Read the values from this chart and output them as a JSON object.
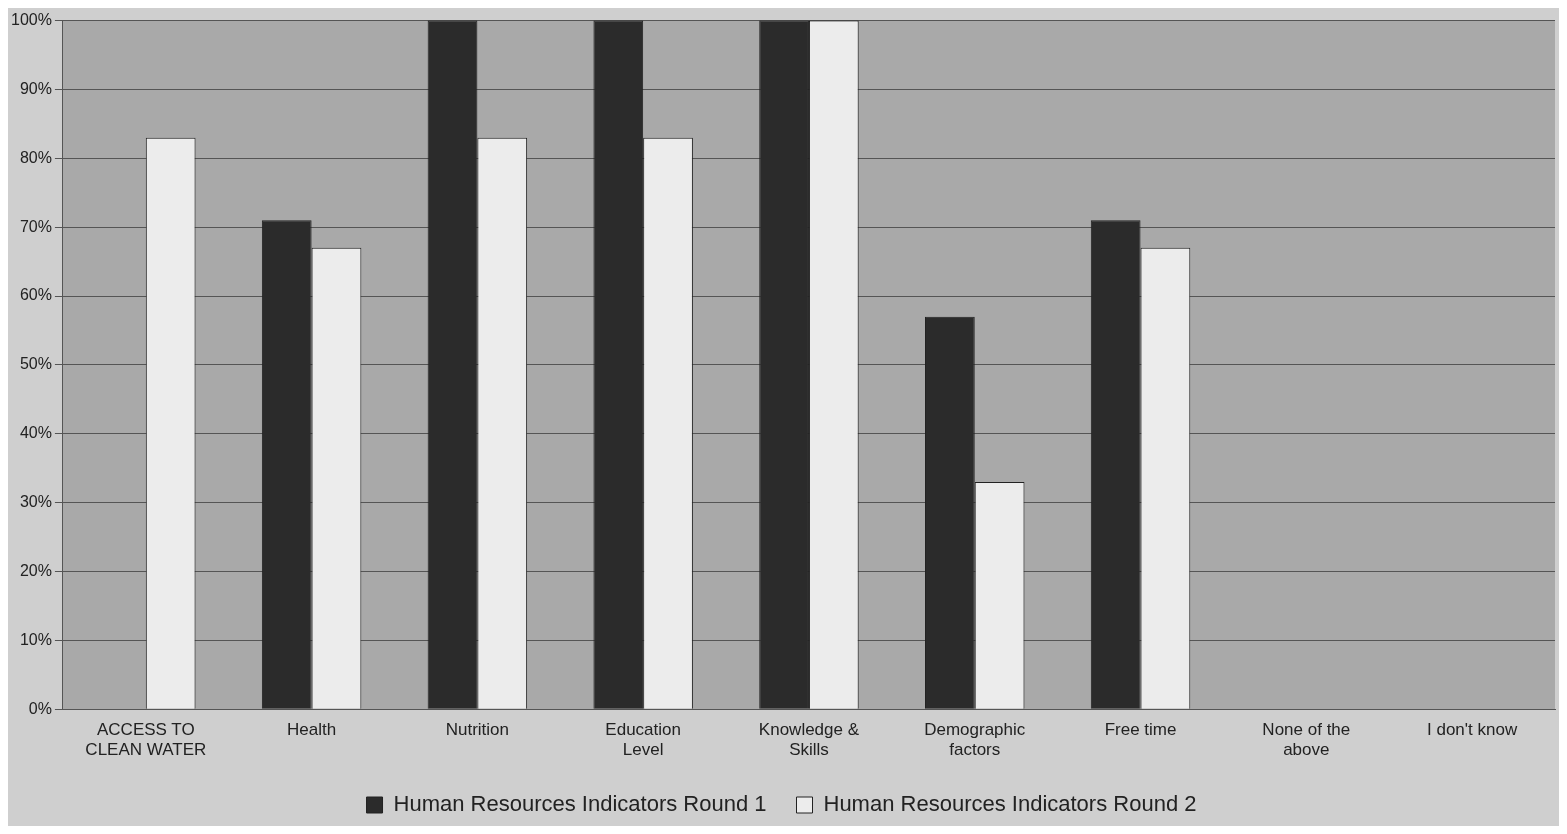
{
  "chart_data": {
    "type": "bar",
    "categories": [
      "ACCESS TO CLEAN WATER",
      "Health",
      "Nutrition",
      "Education Level",
      "Knowledge & Skills",
      "Demographic factors",
      "Free time",
      "None of the above",
      "I don't know"
    ],
    "series": [
      {
        "name": "Human Resources Indicators Round 1",
        "color": "#2b2b2b",
        "values": [
          0,
          71,
          100,
          100,
          100,
          57,
          71,
          0,
          0
        ]
      },
      {
        "name": "Human Resources Indicators Round 2",
        "color": "#ececec",
        "values": [
          83,
          67,
          83,
          83,
          100,
          33,
          67,
          0,
          0
        ]
      }
    ],
    "ylim": [
      0,
      100
    ],
    "yticks": [
      {
        "value": 0,
        "label": "0%"
      },
      {
        "value": 10,
        "label": "10%"
      },
      {
        "value": 20,
        "label": "20%"
      },
      {
        "value": 30,
        "label": "30%"
      },
      {
        "value": 40,
        "label": "40%"
      },
      {
        "value": 50,
        "label": "50%"
      },
      {
        "value": 60,
        "label": "60%"
      },
      {
        "value": 70,
        "label": "70%"
      },
      {
        "value": 80,
        "label": "80%"
      },
      {
        "value": 90,
        "label": "90%"
      },
      {
        "value": 100,
        "label": "100%"
      }
    ],
    "grid": "y",
    "legend": "bottom"
  }
}
